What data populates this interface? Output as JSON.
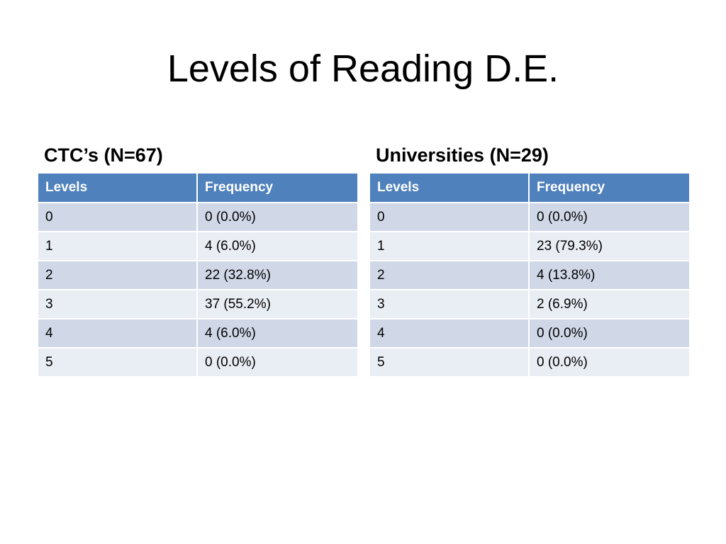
{
  "slide": {
    "title": "Levels of Reading D.E."
  },
  "colors": {
    "header_bg": "#4f81bd",
    "row_odd_bg": "#d0d8e8",
    "row_even_bg": "#e9edf4"
  },
  "tables": [
    {
      "heading": "CTC’s (N=67)",
      "columns": [
        "Levels",
        "Frequency"
      ],
      "rows": [
        [
          "0",
          "0 (0.0%)"
        ],
        [
          "1",
          "4 (6.0%)"
        ],
        [
          "2",
          "22 (32.8%)"
        ],
        [
          "3",
          "37 (55.2%)"
        ],
        [
          "4",
          "4 (6.0%)"
        ],
        [
          "5",
          "0 (0.0%)"
        ]
      ]
    },
    {
      "heading": "Universities (N=29)",
      "columns": [
        "Levels",
        "Frequency"
      ],
      "rows": [
        [
          "0",
          "0 (0.0%)"
        ],
        [
          "1",
          "23 (79.3%)"
        ],
        [
          "2",
          "4 (13.8%)"
        ],
        [
          "3",
          "2 (6.9%)"
        ],
        [
          "4",
          "0 (0.0%)"
        ],
        [
          "5",
          "0 (0.0%)"
        ]
      ]
    }
  ]
}
